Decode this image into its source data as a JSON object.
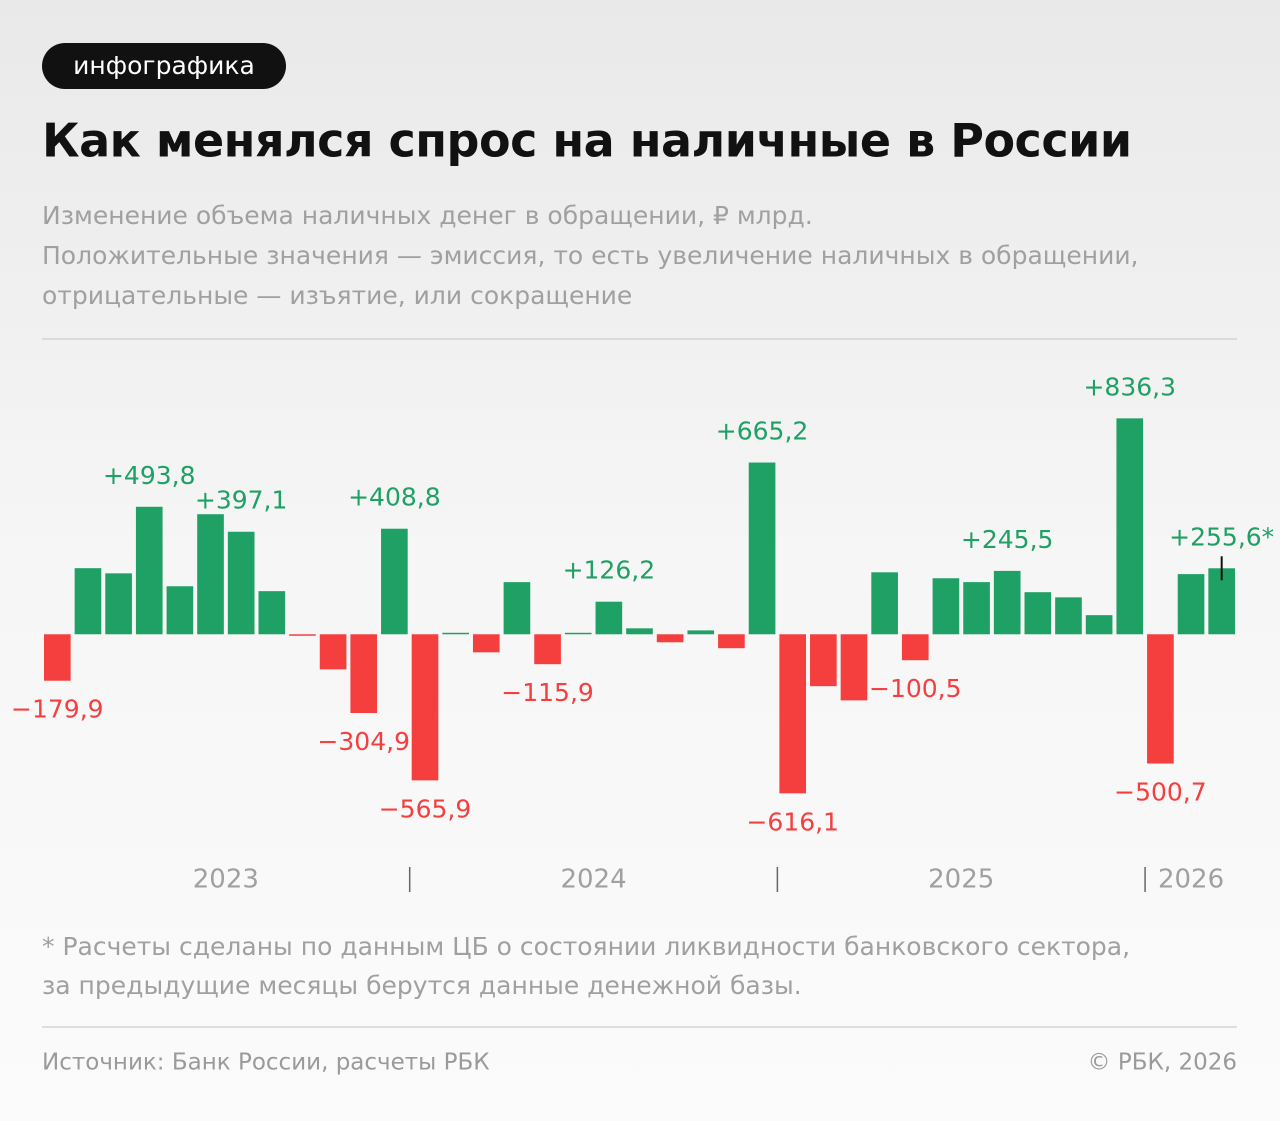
{
  "badge": "инфографика",
  "chart_data": {
    "type": "bar",
    "title": "Как менялся спрос на наличные в России",
    "subtitle": [
      "Изменение объема наличных денег в обращении, ₽ млрд.",
      "Положительные значения — эмиссия, то есть увеличение наличных в обращении,",
      "отрицательные — изъятие, или сокращение"
    ],
    "categories": [
      "2023",
      "2023",
      "2023",
      "2023",
      "2023",
      "2023",
      "2023",
      "2023",
      "2023",
      "2023",
      "2023",
      "2023",
      "2024",
      "2024",
      "2024",
      "2024",
      "2024",
      "2024",
      "2024",
      "2024",
      "2024",
      "2024",
      "2024",
      "2024",
      "2025",
      "2025",
      "2025",
      "2025",
      "2025",
      "2025",
      "2025",
      "2025",
      "2025",
      "2025",
      "2025",
      "2025",
      "2026",
      "2026",
      "2026"
    ],
    "values": [
      -179.9,
      256,
      236,
      493.8,
      186,
      465,
      397.1,
      167,
      -3,
      -136,
      -304.9,
      408.8,
      -565.9,
      3,
      -70,
      202,
      -115.9,
      3,
      126.2,
      23,
      -31,
      15,
      -54,
      665.2,
      -616.1,
      -201,
      -256,
      240,
      -100.5,
      217,
      202,
      245.5,
      163,
      143,
      74,
      836.3,
      -500.7,
      233,
      255.6
    ],
    "value_labels": [
      "−179,9",
      null,
      null,
      "+493,8",
      null,
      null,
      "+397,1",
      null,
      null,
      null,
      "−304,9",
      "+408,8",
      "−565,9",
      null,
      null,
      null,
      "−115,9",
      null,
      "+126,2",
      null,
      null,
      null,
      null,
      "+665,2",
      "−616,1",
      null,
      null,
      null,
      "−100,5",
      null,
      null,
      "+245,5",
      null,
      null,
      null,
      "+836,3",
      "−500,7",
      null,
      "+255,6*"
    ],
    "positive_color": "#1fa064",
    "negative_color": "#f53e3e",
    "ylim": [
      -700,
      950
    ],
    "footnote": [
      "* Расчеты сделаны по данным ЦБ о состоянии ликвидности банковского сектора,",
      "за предыдущие месяцы берутся данные денежной базы."
    ],
    "source": "Источник: Банк России, расчеты РБК",
    "copyright": "© РБК, 2026"
  }
}
